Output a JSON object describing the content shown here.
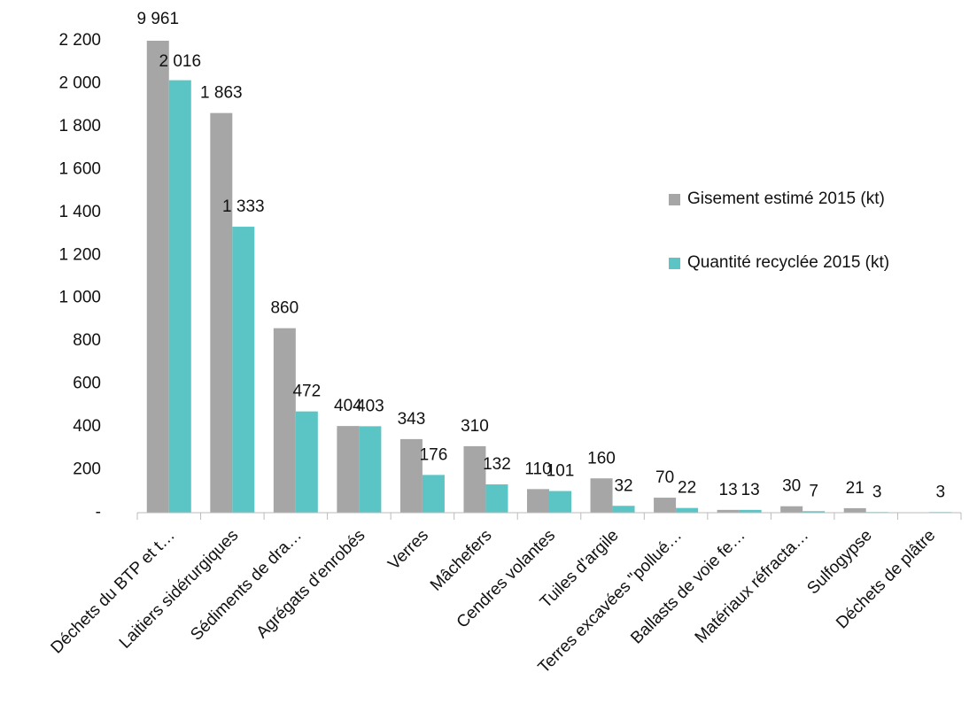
{
  "chart_data": {
    "type": "bar",
    "categories": [
      "Déchets du BTP et t…",
      "Laitiers sidérurgiques",
      "Sédiments de dra…",
      "Agrégats d'enrobés",
      "Verres",
      "Mâchefers",
      "Cendres volantes",
      "Tuiles d'argile",
      "Terres excavées \"pollué…",
      "Ballasts de voie fe…",
      "Matériaux réfracta…",
      "Sulfogypse",
      "Déchets de plâtre"
    ],
    "series": [
      {
        "name": "Gisement estimé 2015 (kt)",
        "color": "#a6a6a6",
        "values": [
          9961,
          1863,
          860,
          404,
          343,
          310,
          110,
          160,
          70,
          13,
          30,
          21,
          null
        ],
        "value_labels": [
          "9 961",
          "1 863",
          "860",
          "404",
          "343",
          "310",
          "110",
          "160",
          "70",
          "13",
          "30",
          "21",
          null
        ]
      },
      {
        "name": "Quantité recyclée 2015 (kt)",
        "color": "#5bc5c5",
        "values": [
          2016,
          1333,
          472,
          403,
          176,
          132,
          101,
          32,
          22,
          13,
          7,
          3,
          3
        ],
        "value_labels": [
          "2 016",
          "1 333",
          "472",
          "403",
          "176",
          "132",
          "101",
          "32",
          "22",
          "13",
          "7",
          "3",
          "3"
        ]
      }
    ],
    "ylim": [
      0,
      2200
    ],
    "yticks": [
      {
        "value": 0,
        "label": "-"
      },
      200,
      400,
      600,
      800,
      {
        "value": 1000,
        "label": "1 000"
      },
      {
        "value": 1200,
        "label": "1 200"
      },
      {
        "value": 1400,
        "label": "1 400"
      },
      {
        "value": 1600,
        "label": "1 600"
      },
      {
        "value": 1800,
        "label": "1 800"
      },
      {
        "value": 2000,
        "label": "2 000"
      },
      {
        "value": 2200,
        "label": "2 200"
      }
    ],
    "grid": false,
    "legend": "right"
  }
}
